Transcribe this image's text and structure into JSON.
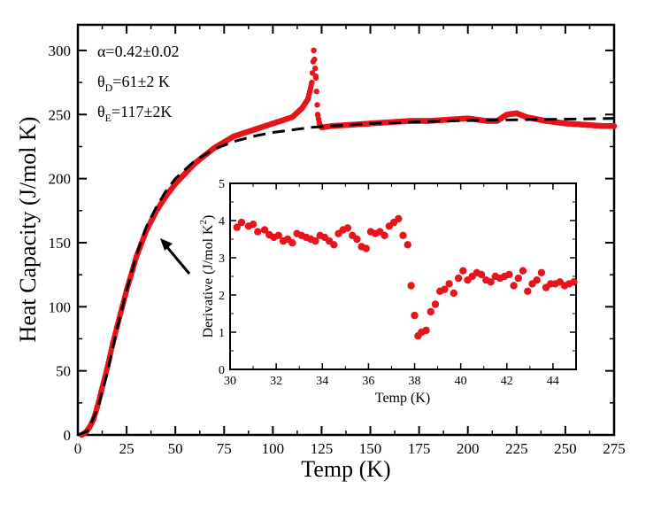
{
  "chart_data": [
    {
      "type": "scatter",
      "role": "main",
      "xlabel": "Temp (K)",
      "ylabel": "Heat Capacity (J/mol K)",
      "xlim": [
        0,
        275
      ],
      "ylim": [
        0,
        320
      ],
      "xticks": [
        "0",
        "25",
        "50",
        "75",
        "100",
        "125",
        "150",
        "175",
        "200",
        "225",
        "250",
        "275"
      ],
      "yticks": [
        "0",
        "50",
        "100",
        "150",
        "200",
        "250",
        "300"
      ],
      "annotations": [
        {
          "name": "alpha",
          "base": "α=0.42±0.02",
          "sub": ""
        },
        {
          "name": "theta-d",
          "base": "θ",
          "sub": "D",
          "rest": "=61±2 K"
        },
        {
          "name": "theta-e",
          "base": "θ",
          "sub": "E",
          "rest": "=117±2K"
        }
      ],
      "series": [
        {
          "name": "measured",
          "style": "dense-markers",
          "color": "#e8141b",
          "x": [
            2,
            4,
            6,
            8,
            10,
            12,
            15,
            18,
            20,
            25,
            30,
            35,
            40,
            45,
            50,
            60,
            70,
            80,
            90,
            100,
            110,
            115,
            118,
            120,
            121,
            122,
            123,
            124,
            125,
            130,
            140,
            150,
            160,
            170,
            180,
            190,
            200,
            210,
            215,
            220,
            225,
            230,
            240,
            250,
            260,
            270,
            275
          ],
          "y": [
            0,
            2,
            6,
            12,
            22,
            34,
            52,
            72,
            84,
            113,
            139,
            159,
            174,
            186,
            196,
            212,
            224,
            233,
            238,
            243,
            248,
            255,
            262,
            275,
            300,
            280,
            250,
            242,
            240,
            241,
            242,
            243,
            244,
            245,
            245,
            246,
            247,
            245,
            245,
            250,
            251,
            248,
            245,
            243,
            242,
            241,
            241
          ]
        },
        {
          "name": "fit",
          "style": "dashed-line",
          "color": "#000000",
          "x": [
            0,
            5,
            10,
            15,
            20,
            25,
            30,
            35,
            40,
            45,
            50,
            60,
            70,
            80,
            90,
            100,
            110,
            120,
            130,
            140,
            150,
            160,
            170,
            180,
            190,
            200,
            220,
            240,
            260,
            275
          ],
          "y": [
            0,
            3,
            20,
            48,
            82,
            113,
            140,
            162,
            177,
            190,
            200,
            214,
            223,
            229,
            233,
            236,
            238,
            240,
            241,
            242,
            243,
            243.5,
            244,
            244.5,
            245,
            245.3,
            245.8,
            246.2,
            246.6,
            247
          ]
        }
      ]
    },
    {
      "type": "scatter",
      "role": "inset",
      "xlabel": "Temp (K)",
      "ylabel_parts": {
        "base": "Derivative (J/mol K",
        "sup": "2",
        "end": ")"
      },
      "xlim": [
        30,
        45
      ],
      "ylim": [
        0,
        5
      ],
      "xticks": [
        "30",
        "32",
        "34",
        "36",
        "38",
        "40",
        "42",
        "44"
      ],
      "yticks": [
        "0",
        "1",
        "2",
        "3",
        "4",
        "5"
      ],
      "series": [
        {
          "name": "derivative",
          "color": "#e8141b",
          "x": [
            30.3,
            30.5,
            30.8,
            31.0,
            31.2,
            31.5,
            31.7,
            31.9,
            32.1,
            32.3,
            32.5,
            32.7,
            32.9,
            33.1,
            33.3,
            33.5,
            33.7,
            33.9,
            34.1,
            34.3,
            34.5,
            34.7,
            34.9,
            35.1,
            35.3,
            35.5,
            35.7,
            35.9,
            36.1,
            36.3,
            36.5,
            36.7,
            36.9,
            37.1,
            37.3,
            37.5,
            37.7,
            37.85,
            38.0,
            38.15,
            38.3,
            38.5,
            38.7,
            38.9,
            39.1,
            39.3,
            39.5,
            39.7,
            39.9,
            40.1,
            40.3,
            40.5,
            40.7,
            40.9,
            41.1,
            41.3,
            41.5,
            41.7,
            41.9,
            42.1,
            42.3,
            42.5,
            42.7,
            42.9,
            43.1,
            43.3,
            43.5,
            43.7,
            43.9,
            44.1,
            44.3,
            44.5,
            44.7,
            44.9
          ],
          "y": [
            3.82,
            3.95,
            3.85,
            3.9,
            3.7,
            3.75,
            3.62,
            3.55,
            3.6,
            3.45,
            3.5,
            3.4,
            3.65,
            3.6,
            3.55,
            3.5,
            3.45,
            3.6,
            3.55,
            3.45,
            3.35,
            3.65,
            3.75,
            3.8,
            3.6,
            3.5,
            3.3,
            3.25,
            3.7,
            3.65,
            3.7,
            3.6,
            3.85,
            3.95,
            4.05,
            3.6,
            3.35,
            2.25,
            1.45,
            0.9,
            1.0,
            1.05,
            1.55,
            1.75,
            2.1,
            2.15,
            2.3,
            2.05,
            2.45,
            2.65,
            2.4,
            2.5,
            2.6,
            2.55,
            2.4,
            2.35,
            2.5,
            2.45,
            2.5,
            2.55,
            2.25,
            2.45,
            2.65,
            2.1,
            2.3,
            2.4,
            2.6,
            2.2,
            2.3,
            2.3,
            2.35,
            2.25,
            2.3,
            2.35
          ]
        }
      ]
    }
  ]
}
